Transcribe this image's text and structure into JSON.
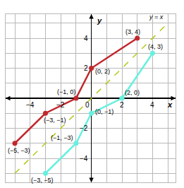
{
  "chart_data": {
    "type": "line",
    "x_label": "x",
    "y_label": "y",
    "series": [
      {
        "color": "#c1272d",
        "marker": "circle",
        "x": [
          -5,
          -3,
          -1,
          0,
          3
        ],
        "values": [
          -3,
          -1,
          0,
          2,
          4
        ]
      },
      {
        "color": "#66f0e0",
        "marker": "circle",
        "x": [
          -3,
          -1,
          0,
          2,
          4
        ],
        "values": [
          -5,
          -3,
          -1,
          0,
          3
        ]
      },
      {
        "name": "y = x",
        "color": "#b5c91a",
        "line_style": "dash",
        "x": [
          -5,
          5
        ],
        "values": [
          -5,
          5
        ]
      }
    ],
    "annotations": [
      {
        "text": "(3, 4)",
        "x": 3,
        "y": 4
      },
      {
        "text": "(4, 3)",
        "x": 4,
        "y": 3
      },
      {
        "text": "(−1, 0)",
        "x": -1,
        "y": 0
      },
      {
        "text": "(0, 2)",
        "x": 0,
        "y": 2
      },
      {
        "text": "(−3, −1)",
        "x": -3,
        "y": -1
      },
      {
        "text": "(2, 0)",
        "x": 2,
        "y": 0
      },
      {
        "text": "(0, −1)",
        "x": 0,
        "y": -1
      },
      {
        "text": "(−1, −3)",
        "x": -1,
        "y": -3
      },
      {
        "text": "(−5, −3)",
        "x": -5,
        "y": -3
      },
      {
        "text": "(−3, −5)",
        "x": -3,
        "y": -5
      }
    ],
    "xlim": [
      -5.6,
      5.5
    ],
    "ylim": [
      -5.6,
      5.6
    ],
    "xticks": [
      {
        "value": -4,
        "label": "−4"
      },
      {
        "value": -2,
        "label": "−2"
      },
      0,
      2,
      4
    ],
    "yticks": [
      {
        "value": -4,
        "label": "−4"
      },
      {
        "value": -2,
        "label": "−2"
      },
      2,
      4
    ],
    "grid": true
  }
}
